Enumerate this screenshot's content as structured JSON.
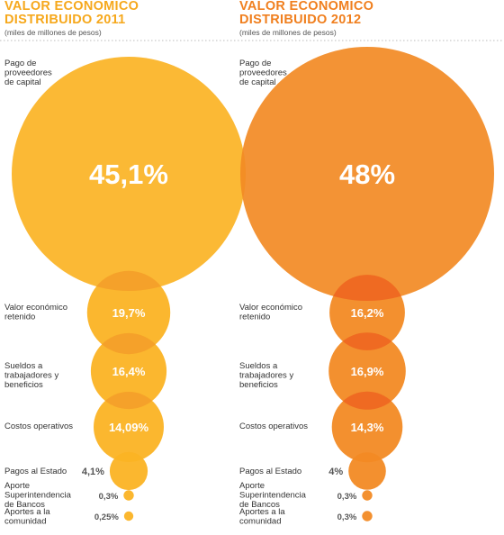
{
  "chart_data": [
    {
      "type": "bubble",
      "title": "VALOR ECONÓMICO DISTRIBUIDO 2011",
      "title_lines": [
        "VALOR ECONÓMICO",
        "DISTRIBUIDO 2011"
      ],
      "subtitle": "(miles de millones de pesos)",
      "color": "#fbb324",
      "items": [
        {
          "label": [
            "Pago de",
            "proveedores",
            "de capital"
          ],
          "value": 45.1,
          "value_label": "45,1%"
        },
        {
          "label": [
            "Valor económico",
            "retenido"
          ],
          "value": 19.7,
          "value_label": "19,7%"
        },
        {
          "label": [
            "Sueldos a",
            "trabajadores y",
            "beneficios"
          ],
          "value": 16.4,
          "value_label": "16,4%"
        },
        {
          "label": [
            "Costos operativos"
          ],
          "value": 14.09,
          "value_label": "14,09%"
        },
        {
          "label": [
            "Pagos al Estado"
          ],
          "value": 4.1,
          "value_label": "4,1%"
        },
        {
          "label": [
            "Aporte",
            "Superintendencia",
            "de Bancos"
          ],
          "value": 0.3,
          "value_label": "0,3%"
        },
        {
          "label": [
            "Aportes a la",
            "comunidad"
          ],
          "value": 0.25,
          "value_label": "0,25%"
        }
      ]
    },
    {
      "type": "bubble",
      "title": "VALOR ECONÓMICO DISTRIBUIDO 2012",
      "title_lines": [
        "VALOR ECONÓMICO",
        "DISTRIBUIDO 2012"
      ],
      "subtitle": "(miles de millones de pesos)",
      "color": "#f28a24",
      "items": [
        {
          "label": [
            "Pago de",
            "proveedores",
            "de capital"
          ],
          "value": 48,
          "value_label": "48%"
        },
        {
          "label": [
            "Valor económico",
            "retenido"
          ],
          "value": 16.2,
          "value_label": "16,2%"
        },
        {
          "label": [
            "Sueldos a",
            "trabajadores y",
            "beneficios"
          ],
          "value": 16.9,
          "value_label": "16,9%"
        },
        {
          "label": [
            "Costos operativos"
          ],
          "value": 14.3,
          "value_label": "14,3%"
        },
        {
          "label": [
            "Pagos al Estado"
          ],
          "value": 4,
          "value_label": "4%"
        },
        {
          "label": [
            "Aporte",
            "Superintendencia",
            "de Bancos"
          ],
          "value": 0.3,
          "value_label": "0,3%"
        },
        {
          "label": [
            "Aportes a la",
            "comunidad"
          ],
          "value": 0.3,
          "value_label": "0,3%"
        }
      ]
    }
  ],
  "colors": {
    "title_2011": "#f6a81c",
    "title_2012": "#f07f1e",
    "overlap_2011": "#f5a12a",
    "overlap_2012": "#ef6a22"
  }
}
